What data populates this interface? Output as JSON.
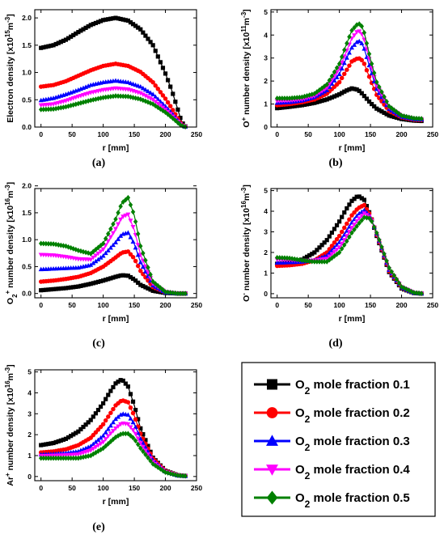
{
  "series_names": [
    "O2 mole fraction 0.1",
    "O2 mole fraction 0.2",
    "O2 mole fraction 0.3",
    "O2 mole fraction 0.4",
    "O2 mole fraction 0.5"
  ],
  "legend": {
    "entries": [
      {
        "base": "O",
        "sub": "2",
        "text": " mole fraction 0.1",
        "color": "#000000",
        "marker": "square"
      },
      {
        "base": "O",
        "sub": "2",
        "text": " mole fraction 0.2",
        "color": "#ff0000",
        "marker": "circle"
      },
      {
        "base": "O",
        "sub": "2",
        "text": " mole fraction 0.3",
        "color": "#0000ff",
        "marker": "triangle-up"
      },
      {
        "base": "O",
        "sub": "2",
        "text": " mole fraction 0.4",
        "color": "#ff00ff",
        "marker": "triangle-down"
      },
      {
        "base": "O",
        "sub": "2",
        "text": " mole fraction 0.5",
        "color": "#008000",
        "marker": "diamond"
      }
    ]
  },
  "chart_data": [
    {
      "type": "line",
      "panel_label": "(a)",
      "xlabel": "r [mm]",
      "ylabel": {
        "pre": "Electron density [x10",
        "sup": "15",
        "mid": "m",
        "sup2": "-3",
        "post": "]"
      },
      "xlim": [
        -10,
        250
      ],
      "ylim": [
        0,
        2.15
      ],
      "xticks": [
        0,
        50,
        100,
        150,
        200,
        250
      ],
      "yticks": [
        0.0,
        0.5,
        1.0,
        1.5,
        2.0
      ],
      "ytick_labels": [
        "0.0",
        "0.5",
        "1.0",
        "1.5",
        "2.0"
      ],
      "x": [
        0,
        20,
        40,
        60,
        80,
        100,
        120,
        140,
        160,
        180,
        200,
        210,
        220,
        225,
        230,
        235
      ],
      "series": [
        {
          "values": [
            1.45,
            1.5,
            1.6,
            1.74,
            1.87,
            1.96,
            2.0,
            1.95,
            1.79,
            1.5,
            0.98,
            0.68,
            0.32,
            0.13,
            0.02,
            0.0
          ]
        },
        {
          "values": [
            0.74,
            0.77,
            0.84,
            0.94,
            1.04,
            1.12,
            1.16,
            1.12,
            1.01,
            0.82,
            0.52,
            0.35,
            0.16,
            0.06,
            0.01,
            0.0
          ]
        },
        {
          "values": [
            0.49,
            0.53,
            0.6,
            0.68,
            0.77,
            0.82,
            0.85,
            0.82,
            0.74,
            0.6,
            0.38,
            0.26,
            0.12,
            0.05,
            0.01,
            0.0
          ]
        },
        {
          "values": [
            0.4,
            0.42,
            0.48,
            0.56,
            0.63,
            0.68,
            0.71,
            0.69,
            0.62,
            0.5,
            0.32,
            0.22,
            0.1,
            0.04,
            0.01,
            0.0
          ]
        },
        {
          "values": [
            0.32,
            0.33,
            0.37,
            0.43,
            0.49,
            0.54,
            0.57,
            0.56,
            0.51,
            0.42,
            0.27,
            0.18,
            0.08,
            0.03,
            0.01,
            0.0
          ]
        }
      ]
    },
    {
      "type": "line",
      "panel_label": "(b)",
      "xlabel": "r [mm]",
      "ylabel": {
        "pre": "O",
        "sup": "+",
        "mid": " number density [x10",
        "sup2": "11",
        "post": "m",
        "sup3": "-3",
        "end": "]"
      },
      "xlim": [
        -10,
        250
      ],
      "ylim": [
        0,
        5.1
      ],
      "xticks": [
        0,
        50,
        100,
        150,
        200,
        250
      ],
      "yticks": [
        0,
        1,
        2,
        3,
        4,
        5
      ],
      "ytick_labels": [
        "0",
        "1",
        "2",
        "3",
        "4",
        "5"
      ],
      "x": [
        0,
        20,
        40,
        60,
        80,
        100,
        110,
        120,
        130,
        135,
        140,
        150,
        160,
        180,
        200,
        220,
        235
      ],
      "series": [
        {
          "values": [
            0.82,
            0.88,
            0.95,
            1.05,
            1.2,
            1.42,
            1.57,
            1.68,
            1.62,
            1.5,
            1.35,
            1.05,
            0.8,
            0.5,
            0.35,
            0.28,
            0.26
          ]
        },
        {
          "values": [
            0.95,
            1.0,
            1.08,
            1.2,
            1.45,
            1.95,
            2.4,
            2.85,
            3.0,
            2.95,
            2.75,
            2.05,
            1.4,
            0.7,
            0.42,
            0.32,
            0.3
          ]
        },
        {
          "values": [
            1.05,
            1.08,
            1.15,
            1.3,
            1.6,
            2.3,
            2.9,
            3.45,
            3.75,
            3.7,
            3.4,
            2.5,
            1.65,
            0.78,
            0.45,
            0.34,
            0.32
          ]
        },
        {
          "values": [
            1.13,
            1.15,
            1.2,
            1.35,
            1.7,
            2.55,
            3.2,
            3.85,
            4.2,
            4.1,
            3.8,
            2.75,
            1.8,
            0.85,
            0.48,
            0.36,
            0.34
          ]
        },
        {
          "values": [
            1.25,
            1.25,
            1.3,
            1.45,
            1.85,
            2.75,
            3.5,
            4.2,
            4.5,
            4.45,
            4.1,
            2.95,
            1.95,
            0.9,
            0.5,
            0.38,
            0.36
          ]
        }
      ]
    },
    {
      "type": "line",
      "panel_label": "(c)",
      "xlabel": "r [mm]",
      "ylabel": {
        "pre": "O",
        "sub": "2",
        "sup": "+",
        "mid": " number density [x10",
        "sup2": "16",
        "post": "m",
        "sup3": "-3",
        "end": "]"
      },
      "xlim": [
        -10,
        250
      ],
      "ylim": [
        -0.08,
        1.95
      ],
      "xticks": [
        0,
        50,
        100,
        150,
        200,
        250
      ],
      "yticks": [
        0.0,
        0.5,
        1.0,
        1.5,
        2.0
      ],
      "ytick_labels": [
        "0.0",
        "0.5",
        "1.0",
        "1.5",
        "2.0"
      ],
      "x": [
        0,
        20,
        40,
        60,
        80,
        100,
        120,
        130,
        140,
        150,
        160,
        180,
        200,
        220,
        235
      ],
      "series": [
        {
          "values": [
            0.06,
            0.08,
            0.1,
            0.13,
            0.18,
            0.24,
            0.31,
            0.34,
            0.33,
            0.26,
            0.16,
            0.05,
            0.01,
            0.0,
            0.0
          ]
        },
        {
          "values": [
            0.22,
            0.24,
            0.27,
            0.31,
            0.38,
            0.5,
            0.67,
            0.76,
            0.78,
            0.65,
            0.42,
            0.12,
            0.02,
            0.0,
            0.0
          ]
        },
        {
          "values": [
            0.45,
            0.46,
            0.47,
            0.48,
            0.53,
            0.7,
            0.95,
            1.1,
            1.13,
            0.92,
            0.58,
            0.15,
            0.02,
            0.0,
            0.0
          ]
        },
        {
          "values": [
            0.72,
            0.71,
            0.68,
            0.64,
            0.63,
            0.82,
            1.2,
            1.42,
            1.47,
            1.18,
            0.72,
            0.18,
            0.03,
            0.0,
            0.0
          ]
        },
        {
          "values": [
            0.93,
            0.92,
            0.88,
            0.8,
            0.74,
            0.93,
            1.38,
            1.68,
            1.78,
            1.45,
            0.88,
            0.22,
            0.03,
            0.0,
            0.0
          ]
        }
      ]
    },
    {
      "type": "line",
      "panel_label": "(d)",
      "xlabel": "r [mm]",
      "ylabel": {
        "pre": "O",
        "sup": "-",
        "mid": " number density [x10",
        "sup2": "16",
        "post": "m",
        "sup3": "-3",
        "end": "]"
      },
      "xlim": [
        -10,
        250
      ],
      "ylim": [
        -0.2,
        5.1
      ],
      "xticks": [
        0,
        50,
        100,
        150,
        200,
        250
      ],
      "yticks": [
        0,
        1,
        2,
        3,
        4,
        5
      ],
      "ytick_labels": [
        "0",
        "1",
        "2",
        "3",
        "4",
        "5"
      ],
      "x": [
        0,
        20,
        40,
        60,
        80,
        100,
        110,
        120,
        130,
        140,
        150,
        160,
        180,
        200,
        220,
        235
      ],
      "series": [
        {
          "values": [
            1.45,
            1.5,
            1.65,
            2.0,
            2.6,
            3.5,
            4.05,
            4.5,
            4.75,
            4.55,
            3.8,
            2.8,
            1.05,
            0.25,
            0.03,
            0.0
          ]
        },
        {
          "values": [
            1.35,
            1.38,
            1.45,
            1.62,
            2.0,
            2.8,
            3.3,
            3.8,
            4.15,
            4.3,
            3.8,
            2.85,
            1.1,
            0.28,
            0.04,
            0.0
          ]
        },
        {
          "values": [
            1.5,
            1.52,
            1.55,
            1.62,
            1.85,
            2.5,
            2.95,
            3.45,
            3.85,
            4.05,
            3.75,
            2.9,
            1.15,
            0.3,
            0.04,
            0.0
          ]
        },
        {
          "values": [
            1.65,
            1.63,
            1.6,
            1.6,
            1.7,
            2.25,
            2.7,
            3.2,
            3.6,
            3.9,
            3.7,
            2.9,
            1.2,
            0.32,
            0.04,
            0.0
          ]
        },
        {
          "values": [
            1.75,
            1.72,
            1.62,
            1.55,
            1.55,
            2.0,
            2.45,
            2.95,
            3.35,
            3.7,
            3.65,
            2.95,
            1.25,
            0.33,
            0.05,
            0.0
          ]
        }
      ]
    },
    {
      "type": "line",
      "panel_label": "(e)",
      "xlabel": "r [mm]",
      "ylabel": {
        "pre": "Ar",
        "sup": "+",
        "mid": " number density [x10",
        "sup2": "16",
        "post": "m",
        "sup3": "-3",
        "end": "]"
      },
      "xlim": [
        -10,
        250
      ],
      "ylim": [
        -0.2,
        5.1
      ],
      "xticks": [
        0,
        50,
        100,
        150,
        200,
        250
      ],
      "yticks": [
        0,
        1,
        2,
        3,
        4,
        5
      ],
      "ytick_labels": [
        "0",
        "1",
        "2",
        "3",
        "4",
        "5"
      ],
      "x": [
        0,
        20,
        40,
        60,
        80,
        100,
        110,
        120,
        130,
        140,
        150,
        160,
        180,
        200,
        220,
        235
      ],
      "series": [
        {
          "values": [
            1.5,
            1.6,
            1.8,
            2.15,
            2.7,
            3.5,
            4.0,
            4.45,
            4.65,
            4.3,
            3.4,
            2.3,
            0.9,
            0.28,
            0.06,
            0.02
          ]
        },
        {
          "values": [
            1.15,
            1.2,
            1.3,
            1.5,
            1.85,
            2.5,
            2.95,
            3.4,
            3.65,
            3.55,
            2.9,
            2.05,
            0.85,
            0.26,
            0.06,
            0.02
          ]
        },
        {
          "values": [
            1.05,
            1.08,
            1.12,
            1.2,
            1.45,
            1.95,
            2.35,
            2.75,
            3.0,
            2.95,
            2.5,
            1.8,
            0.78,
            0.24,
            0.05,
            0.02
          ]
        },
        {
          "values": [
            0.98,
            1.0,
            1.02,
            1.06,
            1.25,
            1.65,
            2.0,
            2.3,
            2.55,
            2.5,
            2.15,
            1.6,
            0.7,
            0.22,
            0.05,
            0.02
          ]
        },
        {
          "values": [
            0.88,
            0.88,
            0.88,
            0.88,
            1.0,
            1.35,
            1.62,
            1.88,
            2.05,
            2.05,
            1.8,
            1.35,
            0.6,
            0.2,
            0.05,
            0.02
          ]
        }
      ]
    }
  ]
}
